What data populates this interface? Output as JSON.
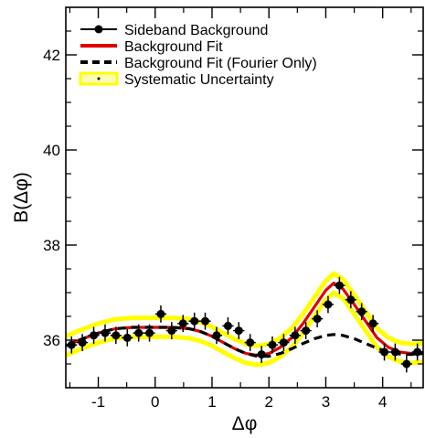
{
  "chart_data": {
    "type": "line",
    "title": "",
    "xlabel": "Δφ",
    "ylabel": "B(Δφ)",
    "xlim": [
      -1.571,
      4.712
    ],
    "ylim": [
      35.0,
      43.0
    ],
    "grid": false,
    "legend_position": "top-left",
    "x_ticks": [
      -1,
      0,
      1,
      2,
      3,
      4
    ],
    "y_ticks": [
      36,
      38,
      40,
      42
    ],
    "series": [
      {
        "name": "Sideband Background",
        "kind": "points",
        "color": "#000000",
        "x": [
          -1.47,
          -1.28,
          -1.08,
          -0.88,
          -0.69,
          -0.49,
          -0.29,
          -0.1,
          0.1,
          0.29,
          0.49,
          0.69,
          0.88,
          1.08,
          1.28,
          1.47,
          1.67,
          1.87,
          2.06,
          2.26,
          2.46,
          2.65,
          2.85,
          3.04,
          3.24,
          3.44,
          3.63,
          3.83,
          4.03,
          4.22,
          4.42,
          4.61
        ],
        "y": [
          35.9,
          35.95,
          36.1,
          36.15,
          36.1,
          36.05,
          36.15,
          36.15,
          36.55,
          36.2,
          36.35,
          36.4,
          36.4,
          36.1,
          36.3,
          36.2,
          35.95,
          35.7,
          35.9,
          35.95,
          36.1,
          36.2,
          36.45,
          36.75,
          37.15,
          36.85,
          36.6,
          36.35,
          35.75,
          35.75,
          35.5,
          35.75
        ],
        "y_err": [
          0.18,
          0.18,
          0.18,
          0.18,
          0.18,
          0.18,
          0.18,
          0.18,
          0.18,
          0.18,
          0.18,
          0.18,
          0.18,
          0.18,
          0.18,
          0.18,
          0.18,
          0.18,
          0.18,
          0.18,
          0.18,
          0.18,
          0.18,
          0.18,
          0.18,
          0.18,
          0.18,
          0.18,
          0.18,
          0.18,
          0.18,
          0.18
        ],
        "x_err": 0.098
      },
      {
        "name": "Background Fit",
        "kind": "line",
        "color": "#e00000",
        "x": [
          -1.571,
          -1.3,
          -1.0,
          -0.7,
          -0.4,
          0.0,
          0.3,
          0.6,
          0.8,
          1.0,
          1.2,
          1.4,
          1.6,
          1.8,
          2.0,
          2.2,
          2.4,
          2.6,
          2.8,
          3.0,
          3.14,
          3.3,
          3.5,
          3.7,
          3.9,
          4.1,
          4.3,
          4.5,
          4.712
        ],
        "y": [
          35.88,
          36.02,
          36.15,
          36.24,
          36.27,
          36.27,
          36.27,
          36.24,
          36.18,
          36.08,
          35.95,
          35.82,
          35.72,
          35.68,
          35.72,
          35.85,
          36.05,
          36.35,
          36.7,
          37.05,
          37.2,
          37.08,
          36.75,
          36.4,
          36.05,
          35.85,
          35.75,
          35.72,
          35.74
        ]
      },
      {
        "name": "Background Fit (Fourier Only)",
        "kind": "dashed",
        "color": "#000000",
        "x": [
          -1.571,
          -1.3,
          -1.0,
          -0.7,
          -0.4,
          0.0,
          0.3,
          0.6,
          0.8,
          1.0,
          1.2,
          1.4,
          1.6,
          1.8,
          2.0,
          2.2,
          2.4,
          2.6,
          2.8,
          3.0,
          3.14,
          3.3,
          3.5,
          3.7,
          3.9,
          4.1,
          4.3,
          4.5,
          4.712
        ],
        "y": [
          35.88,
          36.02,
          36.15,
          36.24,
          36.27,
          36.27,
          36.27,
          36.24,
          36.18,
          36.08,
          35.95,
          35.82,
          35.72,
          35.66,
          35.66,
          35.72,
          35.82,
          35.93,
          36.03,
          36.1,
          36.12,
          36.1,
          36.03,
          35.93,
          35.83,
          35.75,
          35.71,
          35.7,
          35.72
        ]
      },
      {
        "name": "Systematic Uncertainty",
        "kind": "band",
        "color": "#ffff00",
        "half_width": 0.2
      }
    ]
  }
}
